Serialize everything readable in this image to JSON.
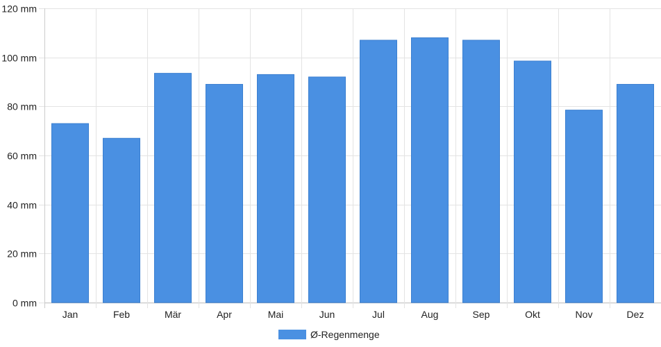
{
  "chart_data": {
    "type": "bar",
    "categories": [
      "Jan",
      "Feb",
      "Mär",
      "Apr",
      "Mai",
      "Jun",
      "Jul",
      "Aug",
      "Sep",
      "Okt",
      "Nov",
      "Dez"
    ],
    "series": [
      {
        "name": "Ø-Regenmenge",
        "values": [
          73,
          67,
          93.5,
          89,
          93,
          92,
          107,
          108,
          107,
          98.5,
          78.5,
          89
        ],
        "color": "#4a90e2"
      }
    ],
    "ylim": [
      0,
      120
    ],
    "yticks": [
      0,
      20,
      40,
      60,
      80,
      100,
      120
    ],
    "ytick_labels": [
      "0 mm",
      "20 mm",
      "40 mm",
      "60 mm",
      "80 mm",
      "100 mm",
      "120 mm"
    ],
    "grid": true,
    "legend_position": "bottom-center"
  }
}
